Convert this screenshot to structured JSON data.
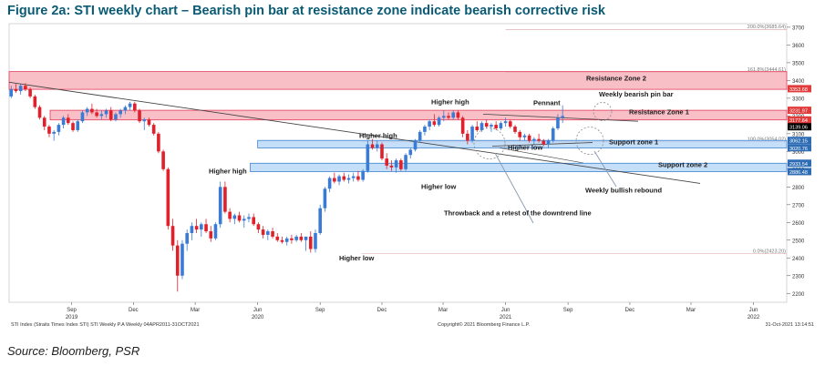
{
  "figure": {
    "title": "Figure 2a: STI weekly chart – Bearish pin bar at resistance zone indicate bearish corrective risk",
    "source": "Source: Bloomberg, PSR"
  },
  "footer": {
    "left": "STI Index (Straits Times Index STI) STI Weekly P.A  Weekly 04APR2011-31OCT2021",
    "center": "Copyright© 2021 Bloomberg Finance L.P.",
    "right": "31-Oct-2021 13:14:51"
  },
  "chart_data": {
    "type": "candlestick",
    "ylim": [
      2150,
      3720
    ],
    "yticks": [
      2200,
      2300,
      2400,
      2500,
      2600,
      2700,
      2800,
      2900,
      3000,
      3100,
      3200,
      3300,
      3400,
      3500,
      3600,
      3700
    ],
    "x_months": [
      {
        "label": "Sep",
        "year": "2019",
        "date": "2019-09"
      },
      {
        "label": "Dec",
        "year": "",
        "date": "2019-12"
      },
      {
        "label": "Mar",
        "year": "",
        "date": "2020-03"
      },
      {
        "label": "Jun",
        "year": "2020",
        "date": "2020-06"
      },
      {
        "label": "Sep",
        "year": "",
        "date": "2020-09"
      },
      {
        "label": "Dec",
        "year": "",
        "date": "2020-12"
      },
      {
        "label": "Mar",
        "year": "",
        "date": "2021-03"
      },
      {
        "label": "Jun",
        "year": "2021",
        "date": "2021-06"
      },
      {
        "label": "Sep",
        "year": "",
        "date": "2021-09"
      },
      {
        "label": "Dec",
        "year": "",
        "date": "2021-12"
      },
      {
        "label": "Mar",
        "year": "",
        "date": "2022-03"
      },
      {
        "label": "Jun",
        "year": "2022",
        "date": "2022-06"
      }
    ],
    "candles": [
      [
        3310,
        3370,
        3300,
        3350
      ],
      [
        3350,
        3380,
        3330,
        3340
      ],
      [
        3340,
        3380,
        3320,
        3370
      ],
      [
        3370,
        3385,
        3340,
        3350
      ],
      [
        3350,
        3360,
        3300,
        3310
      ],
      [
        3310,
        3320,
        3240,
        3250
      ],
      [
        3250,
        3260,
        3180,
        3190
      ],
      [
        3190,
        3200,
        3120,
        3140
      ],
      [
        3140,
        3150,
        3080,
        3100
      ],
      [
        3100,
        3120,
        3060,
        3110
      ],
      [
        3110,
        3160,
        3090,
        3150
      ],
      [
        3150,
        3200,
        3130,
        3190
      ],
      [
        3190,
        3210,
        3150,
        3160
      ],
      [
        3160,
        3170,
        3110,
        3120
      ],
      [
        3120,
        3180,
        3110,
        3170
      ],
      [
        3170,
        3230,
        3160,
        3220
      ],
      [
        3220,
        3250,
        3200,
        3240
      ],
      [
        3240,
        3270,
        3210,
        3220
      ],
      [
        3220,
        3240,
        3190,
        3200
      ],
      [
        3200,
        3230,
        3180,
        3210
      ],
      [
        3210,
        3240,
        3190,
        3230
      ],
      [
        3230,
        3250,
        3170,
        3180
      ],
      [
        3180,
        3220,
        3170,
        3210
      ],
      [
        3210,
        3240,
        3190,
        3230
      ],
      [
        3230,
        3260,
        3210,
        3250
      ],
      [
        3250,
        3280,
        3230,
        3270
      ],
      [
        3270,
        3280,
        3220,
        3230
      ],
      [
        3230,
        3240,
        3160,
        3170
      ],
      [
        3170,
        3190,
        3120,
        3180
      ],
      [
        3180,
        3190,
        3140,
        3150
      ],
      [
        3150,
        3160,
        3090,
        3100
      ],
      [
        3100,
        3110,
        2990,
        3000
      ],
      [
        3000,
        3010,
        2890,
        2900
      ],
      [
        2900,
        2910,
        2560,
        2580
      ],
      [
        2580,
        2620,
        2440,
        2470
      ],
      [
        2470,
        2500,
        2210,
        2300
      ],
      [
        2300,
        2500,
        2280,
        2480
      ],
      [
        2480,
        2560,
        2440,
        2540
      ],
      [
        2540,
        2600,
        2500,
        2580
      ],
      [
        2580,
        2620,
        2540,
        2560
      ],
      [
        2560,
        2600,
        2520,
        2590
      ],
      [
        2590,
        2620,
        2540,
        2550
      ],
      [
        2550,
        2580,
        2490,
        2510
      ],
      [
        2510,
        2600,
        2500,
        2590
      ],
      [
        2590,
        2830,
        2570,
        2800
      ],
      [
        2800,
        2830,
        2650,
        2660
      ],
      [
        2660,
        2680,
        2600,
        2620
      ],
      [
        2620,
        2650,
        2590,
        2640
      ],
      [
        2640,
        2660,
        2600,
        2610
      ],
      [
        2610,
        2640,
        2570,
        2620
      ],
      [
        2620,
        2650,
        2600,
        2630
      ],
      [
        2630,
        2650,
        2580,
        2590
      ],
      [
        2590,
        2600,
        2540,
        2560
      ],
      [
        2560,
        2580,
        2510,
        2530
      ],
      [
        2530,
        2560,
        2500,
        2550
      ],
      [
        2550,
        2570,
        2510,
        2520
      ],
      [
        2520,
        2540,
        2490,
        2500
      ],
      [
        2500,
        2520,
        2480,
        2490
      ],
      [
        2490,
        2520,
        2470,
        2510
      ],
      [
        2510,
        2530,
        2480,
        2500
      ],
      [
        2500,
        2530,
        2490,
        2520
      ],
      [
        2520,
        2540,
        2490,
        2500
      ],
      [
        2500,
        2520,
        2440,
        2520
      ],
      [
        2520,
        2550,
        2430,
        2450
      ],
      [
        2450,
        2560,
        2430,
        2540
      ],
      [
        2540,
        2700,
        2530,
        2680
      ],
      [
        2680,
        2800,
        2660,
        2790
      ],
      [
        2790,
        2860,
        2770,
        2850
      ],
      [
        2850,
        2880,
        2820,
        2830
      ],
      [
        2830,
        2870,
        2810,
        2860
      ],
      [
        2860,
        2880,
        2830,
        2840
      ],
      [
        2840,
        2870,
        2820,
        2850
      ],
      [
        2850,
        2880,
        2830,
        2860
      ],
      [
        2860,
        2890,
        2830,
        2840
      ],
      [
        2840,
        2900,
        2830,
        2890
      ],
      [
        2890,
        3060,
        2880,
        3040
      ],
      [
        3040,
        3070,
        3010,
        3020
      ],
      [
        3020,
        3060,
        3000,
        3040
      ],
      [
        3040,
        3050,
        2950,
        2960
      ],
      [
        2960,
        2990,
        2900,
        2920
      ],
      [
        2920,
        2950,
        2890,
        2910
      ],
      [
        2910,
        2960,
        2880,
        2950
      ],
      [
        2950,
        2960,
        2890,
        2900
      ],
      [
        2900,
        2990,
        2890,
        2980
      ],
      [
        2980,
        3020,
        2960,
        3010
      ],
      [
        3010,
        3070,
        3000,
        3060
      ],
      [
        3060,
        3120,
        3050,
        3110
      ],
      [
        3110,
        3150,
        3090,
        3140
      ],
      [
        3140,
        3180,
        3120,
        3170
      ],
      [
        3170,
        3210,
        3140,
        3150
      ],
      [
        3150,
        3200,
        3140,
        3190
      ],
      [
        3190,
        3230,
        3170,
        3200
      ],
      [
        3200,
        3220,
        3180,
        3190
      ],
      [
        3190,
        3230,
        3180,
        3220
      ],
      [
        3220,
        3230,
        3180,
        3190
      ],
      [
        3190,
        3200,
        3080,
        3100
      ],
      [
        3100,
        3120,
        3040,
        3060
      ],
      [
        3060,
        3150,
        3050,
        3140
      ],
      [
        3140,
        3170,
        3110,
        3120
      ],
      [
        3120,
        3170,
        3110,
        3160
      ],
      [
        3160,
        3180,
        3130,
        3140
      ],
      [
        3140,
        3160,
        3110,
        3150
      ],
      [
        3150,
        3170,
        3120,
        3130
      ],
      [
        3130,
        3170,
        3120,
        3160
      ],
      [
        3160,
        3190,
        3140,
        3170
      ],
      [
        3170,
        3180,
        3130,
        3140
      ],
      [
        3140,
        3150,
        3100,
        3110
      ],
      [
        3110,
        3120,
        3060,
        3080
      ],
      [
        3080,
        3100,
        3060,
        3090
      ],
      [
        3090,
        3100,
        3050,
        3060
      ],
      [
        3060,
        3080,
        3040,
        3070
      ],
      [
        3070,
        3100,
        3050,
        3060
      ],
      [
        3060,
        3070,
        3030,
        3040
      ],
      [
        3040,
        3070,
        3020,
        3060
      ],
      [
        3060,
        3140,
        3050,
        3130
      ],
      [
        3130,
        3210,
        3120,
        3190
      ],
      [
        3190,
        3260,
        3160,
        3200
      ]
    ],
    "first_candle_date": "2019-06",
    "fib_levels": [
      {
        "label": "200.0%(3685.64)",
        "value": 3685.64
      },
      {
        "label": "161.8%(3444.61)",
        "value": 3444.61
      },
      {
        "label": "100.0%(3054.02)",
        "value": 3054.02
      },
      {
        "label": "0.0%(2423.20)",
        "value": 2423.2
      }
    ],
    "zones": [
      {
        "name": "Resistance Zone 2",
        "low": 3350,
        "high": 3450,
        "kind": "resistance"
      },
      {
        "name": "Resistance Zone 1",
        "low": 3177.64,
        "high": 3231.97,
        "kind": "resistance"
      },
      {
        "name": "Support zone 1",
        "low": 3020,
        "high": 3062.15,
        "kind": "support"
      },
      {
        "name": "Support zone 2",
        "low": 2886.48,
        "high": 2933.54,
        "kind": "support"
      }
    ],
    "price_tags": [
      {
        "text": "3353.68",
        "value": 3353.68,
        "color": "#e03c3c"
      },
      {
        "text": "3231.97",
        "value": 3231.97,
        "color": "#e03c3c"
      },
      {
        "text": "3177.64",
        "value": 3177.64,
        "color": "#e03c3c"
      },
      {
        "text": "3139.06",
        "value": 3139.06,
        "color": "#000000"
      },
      {
        "text": "3062.15",
        "value": 3062.15,
        "color": "#2e6db4"
      },
      {
        "text": "3020.76",
        "value": 3020.76,
        "color": "#2e6db4"
      },
      {
        "text": "2933.54",
        "value": 2933.54,
        "color": "#2e6db4"
      },
      {
        "text": "2886.48",
        "value": 2886.48,
        "color": "#2e6db4"
      }
    ],
    "annotations": [
      {
        "text": "Resistance Zone 2",
        "x": "2021-02",
        "y": 3390
      },
      {
        "text": "Resistance Zone 1",
        "x": "2021-12",
        "y": 3200
      },
      {
        "text": "Support zone 1",
        "x": "2021-10",
        "y": 3035
      },
      {
        "text": "Support zone 2",
        "x": "2022-03",
        "y": 2908
      },
      {
        "text": "Higher high",
        "x": "2020-03",
        "y": 2855
      },
      {
        "text": "Higher high",
        "x": "2020-10",
        "y": 3080
      },
      {
        "text": "Higher high",
        "x": "2021-03",
        "y": 3260
      },
      {
        "text": "Pennant",
        "x": "2021-07",
        "y": 3250
      },
      {
        "text": "Weekly bearish pin bar",
        "x": "2021-10",
        "y": 3300
      },
      {
        "text": "Higher low",
        "x": "2021-06",
        "y": 3020
      },
      {
        "text": "Higher low",
        "x": "2020-12",
        "y": 2800
      },
      {
        "text": "Higher low",
        "x": "2020-09",
        "y": 2380
      },
      {
        "text": "Weekly bullish rebound",
        "x": "2021-10",
        "y": 2760
      },
      {
        "text": "Throwback and a retest of the downtrend line",
        "x": "2021-03",
        "y": 2640
      }
    ],
    "colors": {
      "up": "#3a7bd5",
      "down": "#e0202a",
      "resistance_fill": "#f7a9b4",
      "resistance_edge": "#e03c5a",
      "support_fill": "#b3d4f5",
      "support_edge": "#3b82d0"
    }
  }
}
